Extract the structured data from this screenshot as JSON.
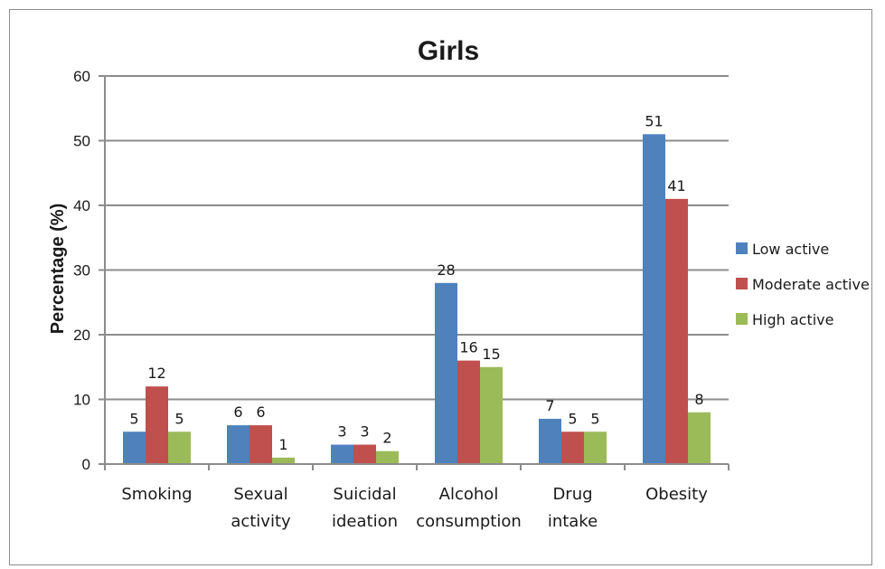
{
  "chart_data": {
    "type": "bar",
    "title": "Girls",
    "ylabel": "Percentage (%)",
    "xlabel": "",
    "ylim": [
      0,
      60
    ],
    "yticks": [
      0,
      10,
      20,
      30,
      40,
      50,
      60
    ],
    "grid": true,
    "legend_position": "right",
    "categories": [
      [
        "Smoking"
      ],
      [
        "Sexual",
        "activity"
      ],
      [
        "Suicidal",
        "ideation"
      ],
      [
        "Alcohol",
        "consumption"
      ],
      [
        "Drug",
        "intake"
      ],
      [
        "Obesity"
      ]
    ],
    "series": [
      {
        "name": "Low active",
        "color": "#4f81bd",
        "values": [
          5,
          6,
          3,
          28,
          7,
          51
        ]
      },
      {
        "name": "Moderate active",
        "color": "#c0504d",
        "values": [
          12,
          6,
          3,
          16,
          5,
          41
        ]
      },
      {
        "name": "High active",
        "color": "#9bbb59",
        "values": [
          5,
          1,
          2,
          15,
          5,
          8
        ]
      }
    ]
  }
}
